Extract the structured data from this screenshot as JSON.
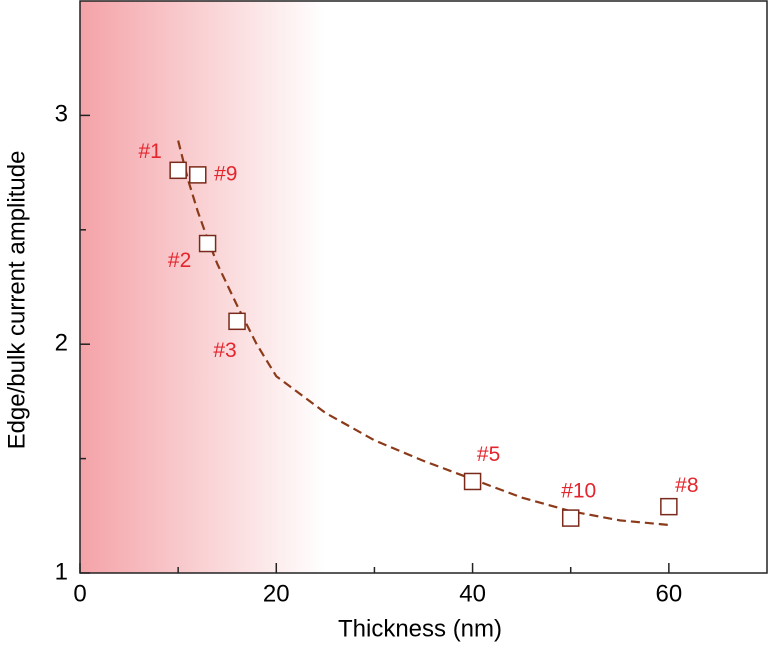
{
  "chart_data": {
    "type": "scatter",
    "xlabel": "Thickness (nm)",
    "ylabel": "Edge/bulk current amplitude",
    "xlim": [
      0,
      70
    ],
    "ylim": [
      1,
      3.5
    ],
    "xticks": [
      0,
      20,
      40,
      60
    ],
    "xticks_minor": [
      10,
      30,
      50
    ],
    "yticks": [
      1,
      2,
      3
    ],
    "yticks_minor": [
      1.5,
      2.5
    ],
    "shaded_region": {
      "xlim": [
        0,
        25
      ],
      "color": "#f4a3a8"
    },
    "series": [
      {
        "x": [
          10,
          12,
          13,
          16,
          40,
          50,
          60
        ],
        "values": [
          2.76,
          2.74,
          2.44,
          2.1,
          1.4,
          1.24,
          1.29
        ],
        "point_labels": [
          "#1",
          "#9",
          "#2",
          "#3",
          "#5",
          "#10",
          "#8"
        ],
        "color": "#7a2a1a",
        "label_color": "#e3262e"
      },
      {
        "type": "line",
        "dashed": true,
        "color": "#8b3a1a",
        "x": [
          10,
          11,
          12,
          13,
          14,
          16,
          18,
          20,
          25,
          30,
          35,
          40,
          45,
          50,
          55,
          60
        ],
        "values": [
          2.89,
          2.72,
          2.58,
          2.46,
          2.35,
          2.17,
          2.0,
          1.86,
          1.7,
          1.58,
          1.49,
          1.41,
          1.33,
          1.27,
          1.23,
          1.21
        ]
      }
    ]
  }
}
